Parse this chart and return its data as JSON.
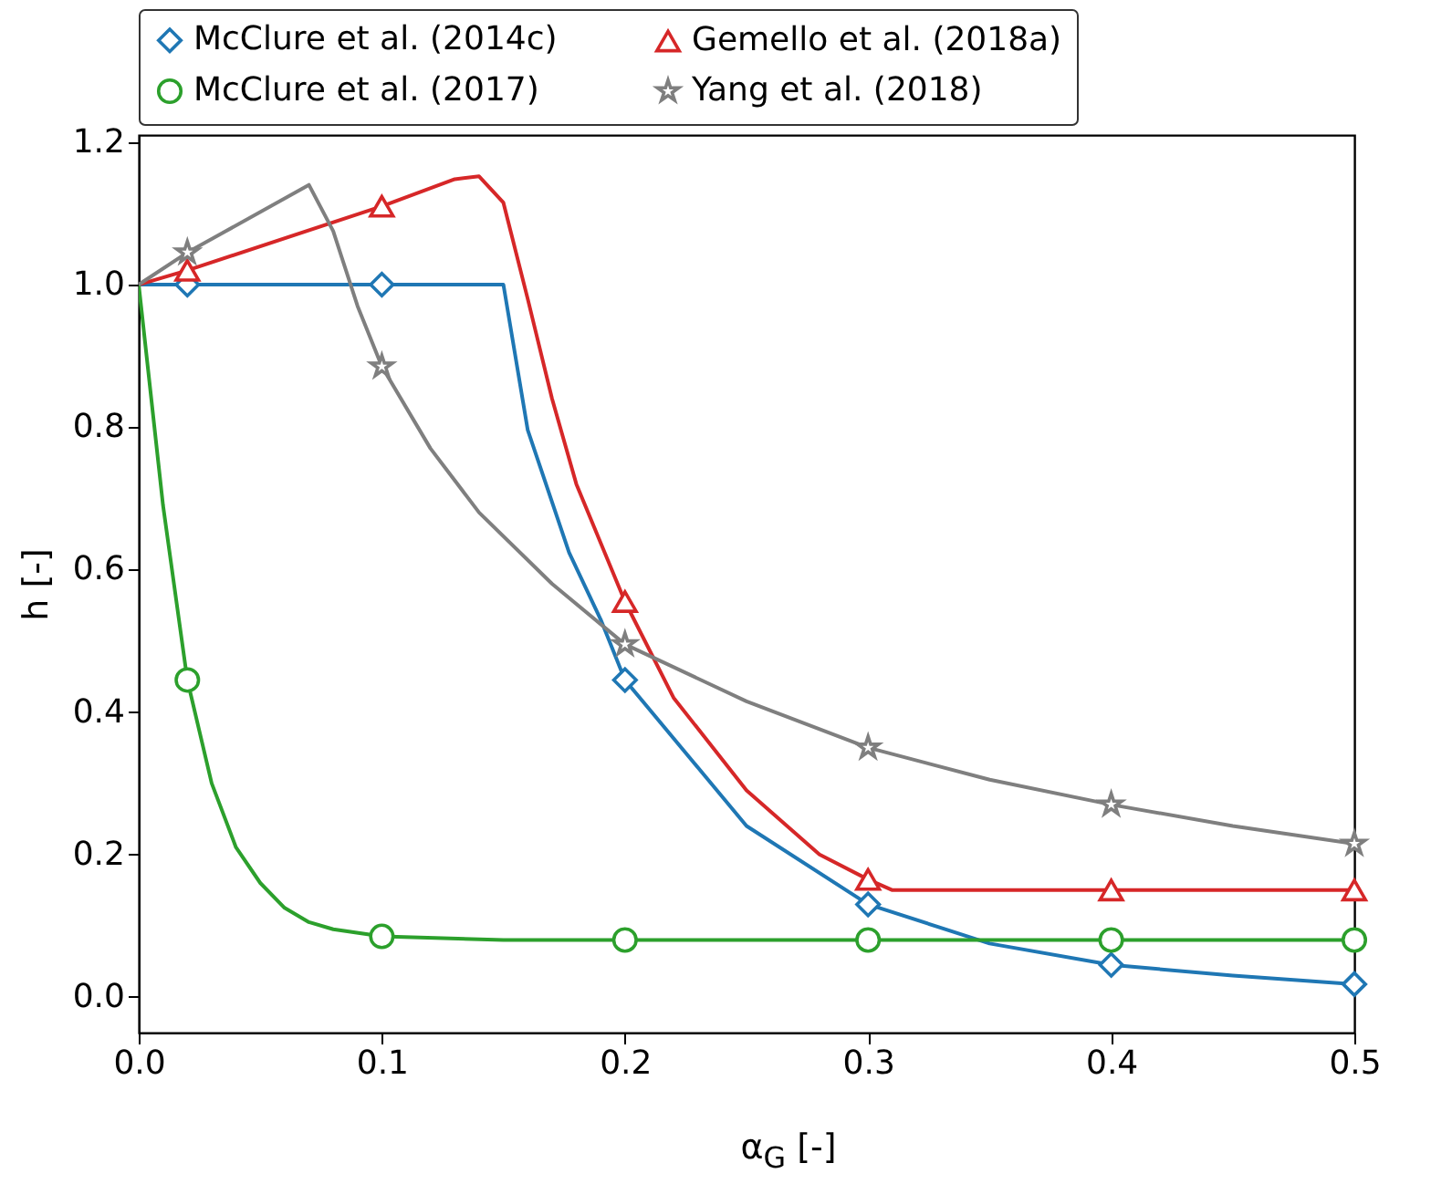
{
  "chart_data": {
    "type": "line",
    "xlabel": "α$_{G}$ [-]",
    "ylabel": "h [-]",
    "xlim": [
      0,
      0.5
    ],
    "xticks": [
      {
        "value": 0,
        "label": "0.0"
      },
      0.1,
      0.2,
      0.3,
      0.4,
      0.5
    ],
    "ylim": [
      -0.05,
      1.21
    ],
    "yticks": [
      {
        "value": 0,
        "label": "0.0"
      },
      0.2,
      0.4,
      0.6,
      0.8,
      {
        "value": 1,
        "label": "1.0"
      },
      1.2
    ],
    "grid": false,
    "legend": "top",
    "line_style": "solid",
    "series": [
      {
        "color": "#1f77b4",
        "marker": "none",
        "x": [
          0,
          0.15,
          0.16,
          0.177,
          0.19,
          0.2,
          0.25,
          0.3,
          0.35,
          0.4,
          0.45,
          0.5
        ],
        "values": [
          1,
          1,
          0.796,
          0.624,
          0.53,
          0.445,
          0.24,
          0.13,
          0.075,
          0.045,
          0.03,
          0.018
        ]
      },
      {
        "color": "#d62728",
        "marker": "none",
        "x": [
          0,
          0.02,
          0.1,
          0.13,
          0.14,
          0.15,
          0.16,
          0.17,
          0.18,
          0.2,
          0.22,
          0.25,
          0.28,
          0.3,
          0.31,
          0.5
        ],
        "values": [
          1,
          1.02,
          1.11,
          1.148,
          1.152,
          1.115,
          0.98,
          0.84,
          0.72,
          0.555,
          0.42,
          0.29,
          0.2,
          0.165,
          0.15,
          0.15
        ]
      },
      {
        "color": "#2ca02c",
        "marker": "none",
        "x": [
          0,
          0.01,
          0.02,
          0.03,
          0.04,
          0.05,
          0.06,
          0.07,
          0.08,
          0.1,
          0.15,
          0.5
        ],
        "values": [
          1,
          0.69,
          0.445,
          0.3,
          0.21,
          0.16,
          0.125,
          0.105,
          0.095,
          0.085,
          0.08,
          0.08
        ]
      },
      {
        "color": "#7f7f7f",
        "marker": "none",
        "x": [
          0,
          0.02,
          0.07,
          0.08,
          0.09,
          0.1,
          0.12,
          0.14,
          0.17,
          0.2,
          0.25,
          0.3,
          0.35,
          0.4,
          0.45,
          0.5
        ],
        "values": [
          1,
          1.045,
          1.14,
          1.075,
          0.97,
          0.885,
          0.77,
          0.68,
          0.58,
          0.495,
          0.415,
          0.35,
          0.305,
          0.27,
          0.24,
          0.215
        ]
      },
      {
        "type": "scatter",
        "name": "McClure et al. (2014c)",
        "color": "#1f77b4",
        "marker": "diamond",
        "x": [
          0.02,
          0.1,
          0.2,
          0.3,
          0.4,
          0.5
        ],
        "values": [
          1,
          1,
          0.445,
          0.13,
          0.045,
          0.018
        ]
      },
      {
        "type": "scatter",
        "name": "Gemello et al. (2018a)",
        "color": "#d62728",
        "marker": "triangle",
        "x": [
          0.02,
          0.1,
          0.2,
          0.3,
          0.4,
          0.5
        ],
        "values": [
          1.02,
          1.11,
          0.555,
          0.165,
          0.15,
          0.15
        ]
      },
      {
        "type": "scatter",
        "name": "McClure et al. (2017)",
        "color": "#2ca02c",
        "marker": "circle",
        "x": [
          0.02,
          0.1,
          0.2,
          0.3,
          0.4,
          0.5
        ],
        "values": [
          0.445,
          0.085,
          0.08,
          0.08,
          0.08,
          0.08
        ]
      },
      {
        "type": "scatter",
        "name": "Yang et al. (2018)",
        "color": "#7f7f7f",
        "marker": "star",
        "x": [
          0.02,
          0.1,
          0.2,
          0.3,
          0.4,
          0.5
        ],
        "values": [
          1.045,
          0.885,
          0.495,
          0.35,
          0.27,
          0.215
        ]
      }
    ]
  }
}
